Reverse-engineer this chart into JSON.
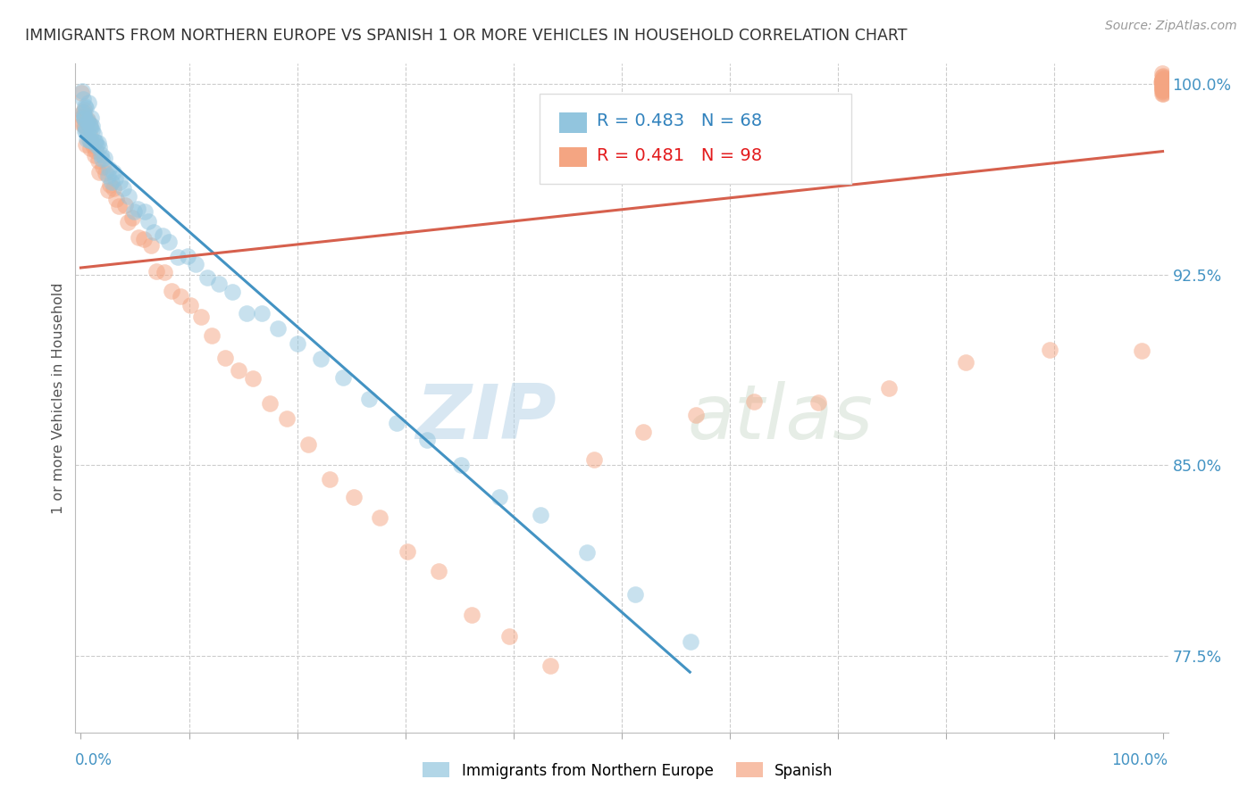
{
  "title": "IMMIGRANTS FROM NORTHERN EUROPE VS SPANISH 1 OR MORE VEHICLES IN HOUSEHOLD CORRELATION CHART",
  "source": "Source: ZipAtlas.com",
  "ylabel": "1 or more Vehicles in Household",
  "watermark_zip": "ZIP",
  "watermark_atlas": "atlas",
  "blue_R": 0.483,
  "blue_N": 68,
  "pink_R": 0.481,
  "pink_N": 98,
  "blue_color": "#92c5de",
  "pink_color": "#f4a582",
  "blue_line_color": "#4393c3",
  "pink_line_color": "#d6604d",
  "legend_blue_label": "Immigrants from Northern Europe",
  "legend_pink_label": "Spanish",
  "blue_x": [
    0.001,
    0.001,
    0.002,
    0.002,
    0.003,
    0.003,
    0.003,
    0.004,
    0.004,
    0.005,
    0.005,
    0.005,
    0.006,
    0.006,
    0.007,
    0.007,
    0.008,
    0.008,
    0.009,
    0.009,
    0.01,
    0.01,
    0.011,
    0.012,
    0.013,
    0.014,
    0.015,
    0.016,
    0.017,
    0.018,
    0.02,
    0.022,
    0.024,
    0.026,
    0.028,
    0.03,
    0.033,
    0.036,
    0.04,
    0.044,
    0.048,
    0.053,
    0.058,
    0.063,
    0.068,
    0.075,
    0.082,
    0.09,
    0.098,
    0.107,
    0.117,
    0.128,
    0.14,
    0.153,
    0.167,
    0.183,
    0.2,
    0.22,
    0.242,
    0.266,
    0.292,
    0.32,
    0.352,
    0.387,
    0.425,
    0.467,
    0.513,
    0.563
  ],
  "blue_y": [
    0.998,
    0.99,
    0.995,
    0.988,
    0.992,
    0.985,
    0.98,
    0.988,
    0.982,
    0.99,
    0.985,
    0.978,
    0.988,
    0.982,
    0.99,
    0.985,
    0.988,
    0.98,
    0.985,
    0.978,
    0.985,
    0.98,
    0.982,
    0.98,
    0.978,
    0.978,
    0.975,
    0.975,
    0.972,
    0.972,
    0.97,
    0.968,
    0.966,
    0.965,
    0.963,
    0.962,
    0.96,
    0.958,
    0.956,
    0.954,
    0.952,
    0.95,
    0.948,
    0.945,
    0.942,
    0.94,
    0.937,
    0.934,
    0.931,
    0.928,
    0.924,
    0.92,
    0.916,
    0.912,
    0.907,
    0.902,
    0.896,
    0.89,
    0.883,
    0.876,
    0.868,
    0.859,
    0.85,
    0.839,
    0.827,
    0.814,
    0.8,
    0.784
  ],
  "pink_x": [
    0.001,
    0.001,
    0.002,
    0.002,
    0.003,
    0.003,
    0.004,
    0.004,
    0.005,
    0.005,
    0.006,
    0.007,
    0.008,
    0.009,
    0.01,
    0.011,
    0.013,
    0.014,
    0.016,
    0.018,
    0.02,
    0.022,
    0.025,
    0.027,
    0.03,
    0.033,
    0.036,
    0.04,
    0.044,
    0.048,
    0.053,
    0.058,
    0.064,
    0.07,
    0.077,
    0.084,
    0.092,
    0.101,
    0.111,
    0.121,
    0.133,
    0.146,
    0.16,
    0.175,
    0.192,
    0.21,
    0.23,
    0.252,
    0.276,
    0.302,
    0.331,
    0.362,
    0.396,
    0.434,
    0.475,
    0.52,
    0.569,
    0.623,
    0.682,
    0.747,
    0.818,
    0.895,
    0.98,
    1.0,
    1.0,
    1.0,
    1.0,
    1.0,
    1.0,
    1.0,
    1.0,
    1.0,
    1.0,
    1.0,
    1.0,
    1.0,
    1.0,
    1.0,
    1.0,
    1.0,
    1.0,
    1.0,
    1.0,
    1.0,
    1.0,
    1.0,
    1.0,
    1.0,
    1.0,
    1.0,
    1.0,
    1.0,
    1.0,
    1.0,
    1.0,
    1.0,
    1.0,
    1.0
  ],
  "pink_y": [
    0.995,
    0.988,
    0.992,
    0.985,
    0.99,
    0.983,
    0.988,
    0.982,
    0.986,
    0.98,
    0.984,
    0.982,
    0.98,
    0.978,
    0.976,
    0.975,
    0.973,
    0.972,
    0.97,
    0.968,
    0.966,
    0.964,
    0.962,
    0.96,
    0.958,
    0.955,
    0.953,
    0.95,
    0.947,
    0.944,
    0.941,
    0.937,
    0.933,
    0.929,
    0.925,
    0.92,
    0.915,
    0.91,
    0.905,
    0.899,
    0.893,
    0.886,
    0.879,
    0.872,
    0.864,
    0.856,
    0.847,
    0.838,
    0.828,
    0.818,
    0.807,
    0.795,
    0.783,
    0.77,
    0.856,
    0.862,
    0.868,
    0.873,
    0.878,
    0.883,
    0.888,
    0.893,
    0.897,
    1.0,
    1.0,
    1.0,
    1.0,
    1.0,
    1.0,
    1.0,
    1.0,
    1.0,
    1.0,
    1.0,
    1.0,
    1.0,
    1.0,
    1.0,
    1.0,
    1.0,
    1.0,
    1.0,
    1.0,
    1.0,
    1.0,
    1.0,
    1.0,
    1.0,
    1.0,
    1.0,
    1.0,
    1.0,
    1.0,
    1.0,
    1.0,
    1.0,
    1.0,
    1.0
  ],
  "ylim_min": 0.745,
  "ylim_max": 1.008,
  "xlim_min": -0.005,
  "xlim_max": 1.005,
  "right_yticks": [
    0.775,
    0.85,
    0.925,
    1.0
  ],
  "right_yticklabels": [
    "77.5%",
    "85.0%",
    "92.5%",
    "100.0%"
  ]
}
